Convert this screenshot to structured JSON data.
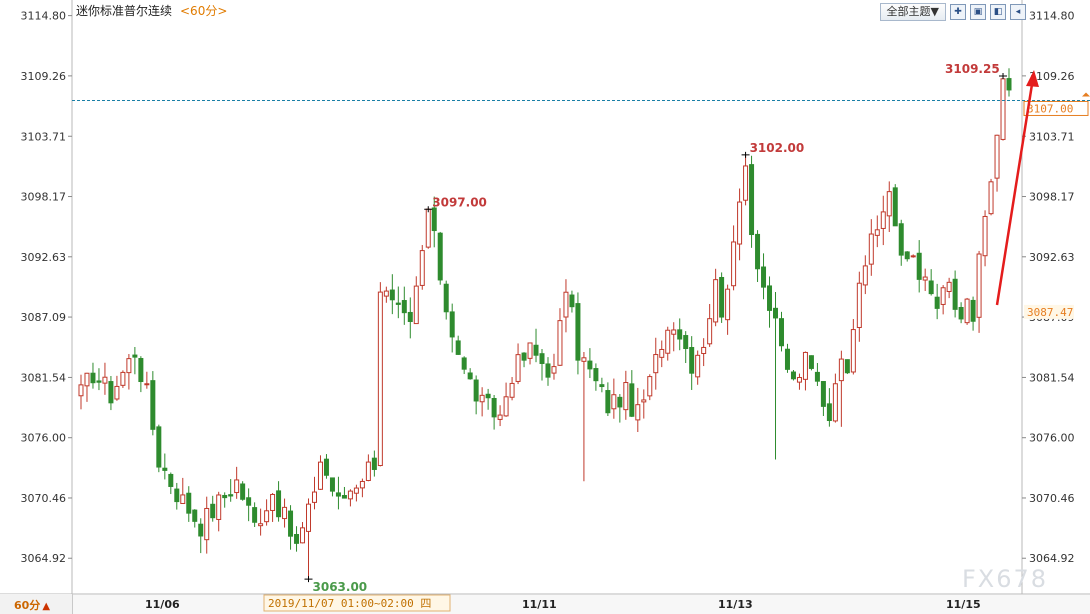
{
  "header": {
    "instrument": "迷你标准普尔连续",
    "period_tag": "<60分>",
    "theme_button": "全部主题▼",
    "icons": [
      "add-icon",
      "select-icon",
      "chart-type-icon",
      "back-icon"
    ]
  },
  "footer": {
    "period_button": "60分",
    "period_arrow": "▲",
    "cursor_info": "2019/11/07 01:00~02:00 四",
    "x_labels": [
      "11/06",
      "11/11",
      "11/13",
      "11/15"
    ]
  },
  "watermark": "FX678",
  "chart_data": {
    "type": "candlestick",
    "y_ticks": [
      "3114.80",
      "3109.26",
      "3103.71",
      "3098.17",
      "3092.63",
      "3087.09",
      "3081.54",
      "3076.00",
      "3070.46",
      "3064.92"
    ],
    "ylim": [
      3062.0,
      3115.5
    ],
    "annotations": {
      "high_1": "3097.00",
      "high_2": "3102.00",
      "high_3": "3109.25",
      "low_1": "3063.00"
    },
    "current_price": "3107.00",
    "side_price_label": "3087.47",
    "colors": {
      "up": "#c0392b",
      "down": "#2e8b2e",
      "high_label": "#c23a3a",
      "low_label": "#4a9a4a",
      "price_line": "#1a7fa6",
      "price_tag": "#e67e22",
      "arrow": "#e41c1c"
    },
    "anchor_points": [
      [
        0,
        3080
      ],
      [
        2,
        3082
      ],
      [
        5,
        3080
      ],
      [
        9,
        3084
      ],
      [
        11,
        3080
      ],
      [
        13,
        3074
      ],
      [
        16,
        3071
      ],
      [
        20,
        3068
      ],
      [
        23,
        3070
      ],
      [
        26,
        3072
      ],
      [
        29,
        3068
      ],
      [
        32,
        3071
      ],
      [
        36,
        3066
      ],
      [
        38,
        3069
      ],
      [
        40,
        3074
      ],
      [
        43,
        3070
      ],
      [
        46,
        3072
      ],
      [
        49,
        3074
      ],
      [
        50,
        3090
      ],
      [
        52,
        3088
      ],
      [
        55,
        3086
      ],
      [
        57,
        3093
      ],
      [
        58,
        3097
      ],
      [
        59,
        3094
      ],
      [
        61,
        3088
      ],
      [
        64,
        3082
      ],
      [
        67,
        3079
      ],
      [
        70,
        3078
      ],
      [
        72,
        3082
      ],
      [
        75,
        3084
      ],
      [
        79,
        3082
      ],
      [
        81,
        3090
      ],
      [
        83,
        3084
      ],
      [
        85,
        3082
      ],
      [
        88,
        3079
      ],
      [
        91,
        3080
      ],
      [
        93,
        3078
      ],
      [
        95,
        3081
      ],
      [
        97,
        3085
      ],
      [
        99,
        3087
      ],
      [
        102,
        3083
      ],
      [
        104,
        3085
      ],
      [
        106,
        3090
      ],
      [
        107,
        3088
      ],
      [
        109,
        3093
      ],
      [
        111,
        3102
      ],
      [
        112,
        3095
      ],
      [
        114,
        3090
      ],
      [
        117,
        3084
      ],
      [
        119,
        3081
      ],
      [
        121,
        3083
      ],
      [
        123,
        3081
      ],
      [
        125,
        3078
      ],
      [
        126,
        3082
      ],
      [
        128,
        3083
      ],
      [
        130,
        3091
      ],
      [
        133,
        3095
      ],
      [
        135,
        3099
      ],
      [
        137,
        3092
      ],
      [
        139,
        3093
      ],
      [
        141,
        3090
      ],
      [
        143,
        3088
      ],
      [
        145,
        3090
      ],
      [
        147,
        3086
      ],
      [
        148,
        3088
      ],
      [
        149,
        3087
      ],
      [
        150,
        3093
      ],
      [
        152,
        3099
      ],
      [
        153,
        3103
      ],
      [
        154,
        3109
      ],
      [
        155,
        3107
      ]
    ],
    "extremes": {
      "low_1_index": 38,
      "high_1_index": 58,
      "high_2_index": 111,
      "high_3_index": 154
    }
  }
}
